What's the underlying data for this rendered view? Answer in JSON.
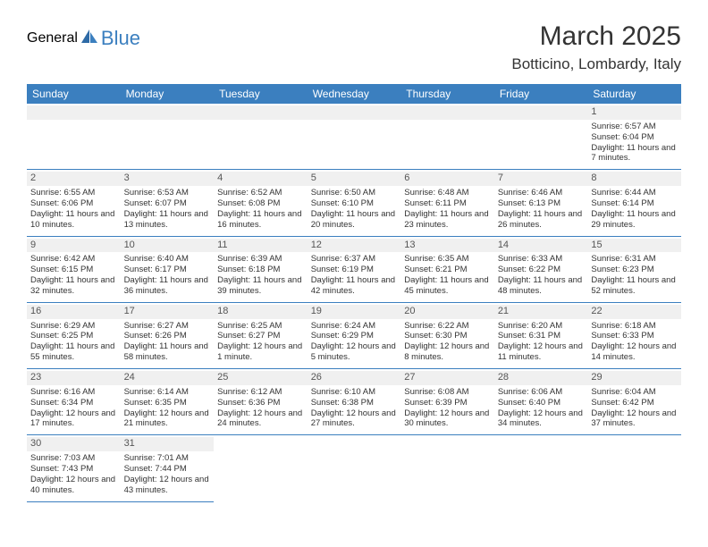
{
  "brand": {
    "text1": "General",
    "text2": "Blue"
  },
  "title": "March 2025",
  "location": "Botticino, Lombardy, Italy",
  "colors": {
    "header_bg": "#3b7fbf",
    "header_fg": "#ffffff",
    "gray_bg": "#f0f0f0",
    "text": "#333333",
    "border": "#3b7fbf"
  },
  "weekdays": [
    "Sunday",
    "Monday",
    "Tuesday",
    "Wednesday",
    "Thursday",
    "Friday",
    "Saturday"
  ],
  "weeks": [
    [
      null,
      null,
      null,
      null,
      null,
      null,
      {
        "n": "1",
        "sunrise": "Sunrise: 6:57 AM",
        "sunset": "Sunset: 6:04 PM",
        "daylight": "Daylight: 11 hours and 7 minutes."
      }
    ],
    [
      {
        "n": "2",
        "sunrise": "Sunrise: 6:55 AM",
        "sunset": "Sunset: 6:06 PM",
        "daylight": "Daylight: 11 hours and 10 minutes."
      },
      {
        "n": "3",
        "sunrise": "Sunrise: 6:53 AM",
        "sunset": "Sunset: 6:07 PM",
        "daylight": "Daylight: 11 hours and 13 minutes."
      },
      {
        "n": "4",
        "sunrise": "Sunrise: 6:52 AM",
        "sunset": "Sunset: 6:08 PM",
        "daylight": "Daylight: 11 hours and 16 minutes."
      },
      {
        "n": "5",
        "sunrise": "Sunrise: 6:50 AM",
        "sunset": "Sunset: 6:10 PM",
        "daylight": "Daylight: 11 hours and 20 minutes."
      },
      {
        "n": "6",
        "sunrise": "Sunrise: 6:48 AM",
        "sunset": "Sunset: 6:11 PM",
        "daylight": "Daylight: 11 hours and 23 minutes."
      },
      {
        "n": "7",
        "sunrise": "Sunrise: 6:46 AM",
        "sunset": "Sunset: 6:13 PM",
        "daylight": "Daylight: 11 hours and 26 minutes."
      },
      {
        "n": "8",
        "sunrise": "Sunrise: 6:44 AM",
        "sunset": "Sunset: 6:14 PM",
        "daylight": "Daylight: 11 hours and 29 minutes."
      }
    ],
    [
      {
        "n": "9",
        "sunrise": "Sunrise: 6:42 AM",
        "sunset": "Sunset: 6:15 PM",
        "daylight": "Daylight: 11 hours and 32 minutes."
      },
      {
        "n": "10",
        "sunrise": "Sunrise: 6:40 AM",
        "sunset": "Sunset: 6:17 PM",
        "daylight": "Daylight: 11 hours and 36 minutes."
      },
      {
        "n": "11",
        "sunrise": "Sunrise: 6:39 AM",
        "sunset": "Sunset: 6:18 PM",
        "daylight": "Daylight: 11 hours and 39 minutes."
      },
      {
        "n": "12",
        "sunrise": "Sunrise: 6:37 AM",
        "sunset": "Sunset: 6:19 PM",
        "daylight": "Daylight: 11 hours and 42 minutes."
      },
      {
        "n": "13",
        "sunrise": "Sunrise: 6:35 AM",
        "sunset": "Sunset: 6:21 PM",
        "daylight": "Daylight: 11 hours and 45 minutes."
      },
      {
        "n": "14",
        "sunrise": "Sunrise: 6:33 AM",
        "sunset": "Sunset: 6:22 PM",
        "daylight": "Daylight: 11 hours and 48 minutes."
      },
      {
        "n": "15",
        "sunrise": "Sunrise: 6:31 AM",
        "sunset": "Sunset: 6:23 PM",
        "daylight": "Daylight: 11 hours and 52 minutes."
      }
    ],
    [
      {
        "n": "16",
        "sunrise": "Sunrise: 6:29 AM",
        "sunset": "Sunset: 6:25 PM",
        "daylight": "Daylight: 11 hours and 55 minutes."
      },
      {
        "n": "17",
        "sunrise": "Sunrise: 6:27 AM",
        "sunset": "Sunset: 6:26 PM",
        "daylight": "Daylight: 11 hours and 58 minutes."
      },
      {
        "n": "18",
        "sunrise": "Sunrise: 6:25 AM",
        "sunset": "Sunset: 6:27 PM",
        "daylight": "Daylight: 12 hours and 1 minute."
      },
      {
        "n": "19",
        "sunrise": "Sunrise: 6:24 AM",
        "sunset": "Sunset: 6:29 PM",
        "daylight": "Daylight: 12 hours and 5 minutes."
      },
      {
        "n": "20",
        "sunrise": "Sunrise: 6:22 AM",
        "sunset": "Sunset: 6:30 PM",
        "daylight": "Daylight: 12 hours and 8 minutes."
      },
      {
        "n": "21",
        "sunrise": "Sunrise: 6:20 AM",
        "sunset": "Sunset: 6:31 PM",
        "daylight": "Daylight: 12 hours and 11 minutes."
      },
      {
        "n": "22",
        "sunrise": "Sunrise: 6:18 AM",
        "sunset": "Sunset: 6:33 PM",
        "daylight": "Daylight: 12 hours and 14 minutes."
      }
    ],
    [
      {
        "n": "23",
        "sunrise": "Sunrise: 6:16 AM",
        "sunset": "Sunset: 6:34 PM",
        "daylight": "Daylight: 12 hours and 17 minutes."
      },
      {
        "n": "24",
        "sunrise": "Sunrise: 6:14 AM",
        "sunset": "Sunset: 6:35 PM",
        "daylight": "Daylight: 12 hours and 21 minutes."
      },
      {
        "n": "25",
        "sunrise": "Sunrise: 6:12 AM",
        "sunset": "Sunset: 6:36 PM",
        "daylight": "Daylight: 12 hours and 24 minutes."
      },
      {
        "n": "26",
        "sunrise": "Sunrise: 6:10 AM",
        "sunset": "Sunset: 6:38 PM",
        "daylight": "Daylight: 12 hours and 27 minutes."
      },
      {
        "n": "27",
        "sunrise": "Sunrise: 6:08 AM",
        "sunset": "Sunset: 6:39 PM",
        "daylight": "Daylight: 12 hours and 30 minutes."
      },
      {
        "n": "28",
        "sunrise": "Sunrise: 6:06 AM",
        "sunset": "Sunset: 6:40 PM",
        "daylight": "Daylight: 12 hours and 34 minutes."
      },
      {
        "n": "29",
        "sunrise": "Sunrise: 6:04 AM",
        "sunset": "Sunset: 6:42 PM",
        "daylight": "Daylight: 12 hours and 37 minutes."
      }
    ],
    [
      {
        "n": "30",
        "sunrise": "Sunrise: 7:03 AM",
        "sunset": "Sunset: 7:43 PM",
        "daylight": "Daylight: 12 hours and 40 minutes."
      },
      {
        "n": "31",
        "sunrise": "Sunrise: 7:01 AM",
        "sunset": "Sunset: 7:44 PM",
        "daylight": "Daylight: 12 hours and 43 minutes."
      },
      null,
      null,
      null,
      null,
      null
    ]
  ]
}
